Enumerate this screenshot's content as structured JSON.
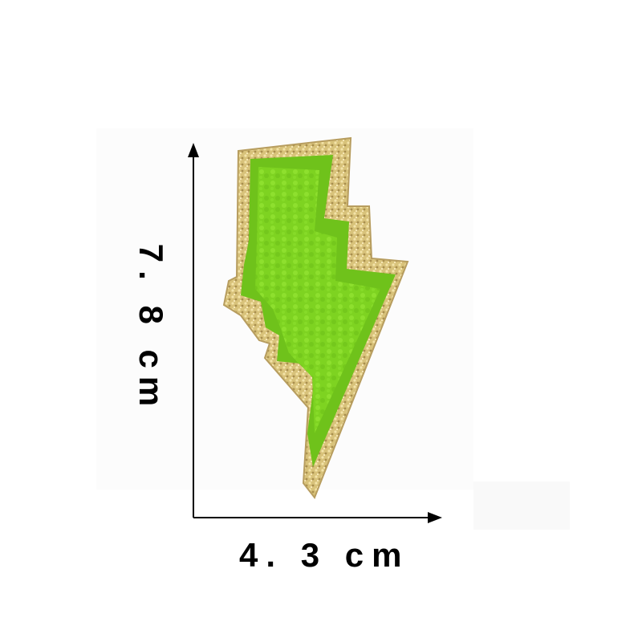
{
  "image": {
    "subject": "lightning-bolt-patch",
    "colors": {
      "chenille": "#7ed321",
      "felt": "#6fc21b",
      "glitter": "#d8c27a",
      "glitter_dark": "#9c8447",
      "axis": "#000000",
      "background": "#ffffff"
    }
  },
  "dimensions": {
    "height_label": "7. 8 cm",
    "width_label": "4. 3 cm"
  }
}
